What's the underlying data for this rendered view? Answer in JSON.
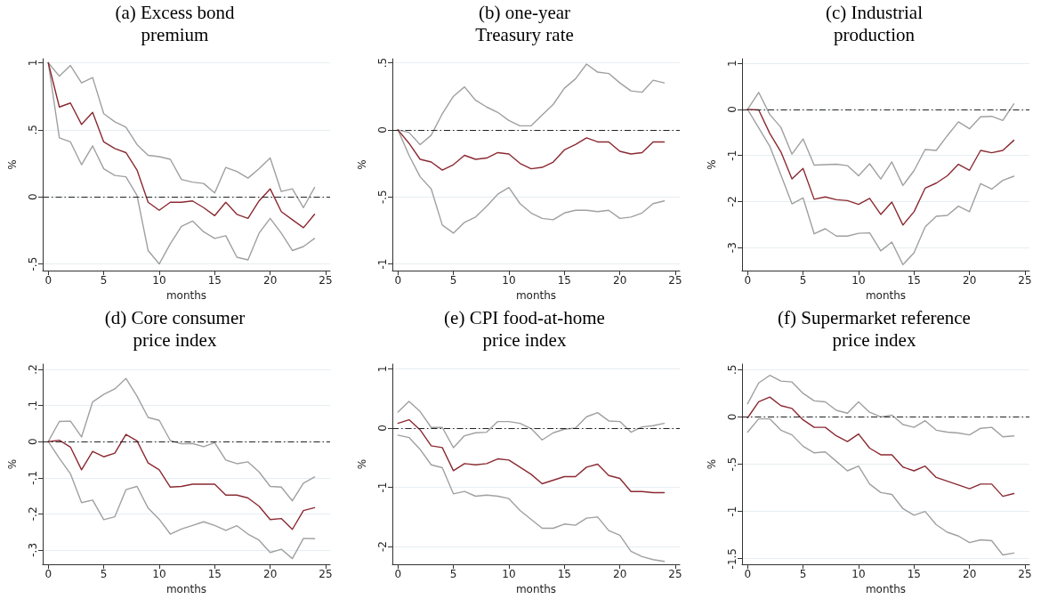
{
  "chart_data": [
    {
      "type": "line",
      "title": "(a) Excess bond\npremium",
      "xlabel": "months",
      "ylabel": "%",
      "x": [
        0,
        1,
        2,
        3,
        4,
        5,
        6,
        7,
        8,
        9,
        10,
        11,
        12,
        13,
        14,
        15,
        16,
        17,
        18,
        19,
        20,
        21,
        22,
        23,
        24
      ],
      "xlim": [
        -0.5,
        25.4
      ],
      "xticks": [
        0,
        5,
        10,
        15,
        20,
        25
      ],
      "ylim": [
        -0.55,
        1.03
      ],
      "yticks": [
        {
          "value": -0.5,
          "label": "-.5"
        },
        0,
        {
          "value": 0.5,
          "label": ".5"
        },
        1
      ],
      "grid": "y",
      "marker": "none",
      "line_style": "solid",
      "ref_lines": [
        {
          "axis": "y",
          "value": 0,
          "color": "#222222",
          "line_style": "dashed"
        }
      ],
      "series": [
        {
          "color": "#a0a0a0",
          "values": [
            1.0,
            0.9,
            0.98,
            0.85,
            0.89,
            0.62,
            0.56,
            0.52,
            0.39,
            0.31,
            0.3,
            0.28,
            0.13,
            0.11,
            0.1,
            0.03,
            0.22,
            0.19,
            0.14,
            0.21,
            0.29,
            0.04,
            0.06,
            -0.08,
            0.07
          ]
        },
        {
          "color": "#a0a0a0",
          "values": [
            1.0,
            0.44,
            0.41,
            0.24,
            0.38,
            0.21,
            0.16,
            0.15,
            0.01,
            -0.4,
            -0.5,
            -0.35,
            -0.22,
            -0.18,
            -0.26,
            -0.31,
            -0.29,
            -0.45,
            -0.47,
            -0.27,
            -0.16,
            -0.27,
            -0.4,
            -0.37,
            -0.31
          ]
        },
        {
          "color": "#8b2a32",
          "values": [
            1.0,
            0.67,
            0.7,
            0.54,
            0.63,
            0.41,
            0.36,
            0.33,
            0.2,
            -0.04,
            -0.1,
            -0.04,
            -0.04,
            -0.03,
            -0.08,
            -0.14,
            -0.04,
            -0.13,
            -0.16,
            -0.03,
            0.06,
            -0.11,
            -0.17,
            -0.23,
            -0.13
          ]
        }
      ]
    },
    {
      "type": "line",
      "title": "(b) one-year\nTreasury rate",
      "xlabel": "months",
      "ylabel": "%",
      "x": [
        0,
        1,
        2,
        3,
        4,
        5,
        6,
        7,
        8,
        9,
        10,
        11,
        12,
        13,
        14,
        15,
        16,
        17,
        18,
        19,
        20,
        21,
        22,
        23,
        24
      ],
      "xlim": [
        -0.5,
        25.4
      ],
      "xticks": [
        0,
        5,
        10,
        15,
        20,
        25
      ],
      "ylim": [
        -1.05,
        0.53
      ],
      "yticks": [
        -1,
        {
          "value": -0.5,
          "label": "-.5"
        },
        0,
        {
          "value": 0.5,
          "label": ".5"
        }
      ],
      "grid": "y",
      "marker": "none",
      "line_style": "solid",
      "ref_lines": [
        {
          "axis": "y",
          "value": 0,
          "color": "#222222",
          "line_style": "dashed"
        }
      ],
      "series": [
        {
          "color": "#a0a0a0",
          "values": [
            0,
            -0.02,
            -0.11,
            -0.04,
            0.12,
            0.25,
            0.32,
            0.22,
            0.17,
            0.13,
            0.07,
            0.03,
            0.03,
            0.11,
            0.19,
            0.31,
            0.38,
            0.49,
            0.43,
            0.42,
            0.35,
            0.29,
            0.28,
            0.37,
            0.35
          ]
        },
        {
          "color": "#a0a0a0",
          "values": [
            0,
            -0.19,
            -0.35,
            -0.44,
            -0.71,
            -0.77,
            -0.69,
            -0.65,
            -0.57,
            -0.48,
            -0.43,
            -0.55,
            -0.62,
            -0.66,
            -0.67,
            -0.62,
            -0.6,
            -0.6,
            -0.61,
            -0.6,
            -0.66,
            -0.65,
            -0.62,
            -0.55,
            -0.53
          ]
        },
        {
          "color": "#8b2a32",
          "values": [
            0,
            -0.1,
            -0.22,
            -0.24,
            -0.3,
            -0.26,
            -0.19,
            -0.22,
            -0.21,
            -0.17,
            -0.18,
            -0.25,
            -0.29,
            -0.28,
            -0.24,
            -0.15,
            -0.11,
            -0.06,
            -0.09,
            -0.09,
            -0.16,
            -0.18,
            -0.17,
            -0.09,
            -0.09
          ]
        }
      ]
    },
    {
      "type": "line",
      "title": "(c) Industrial\nproduction",
      "xlabel": "months",
      "ylabel": "%",
      "x": [
        0,
        1,
        2,
        3,
        4,
        5,
        6,
        7,
        8,
        9,
        10,
        11,
        12,
        13,
        14,
        15,
        16,
        17,
        18,
        19,
        20,
        21,
        22,
        23,
        24
      ],
      "xlim": [
        -0.5,
        25.4
      ],
      "xticks": [
        0,
        5,
        10,
        15,
        20,
        25
      ],
      "ylim": [
        -3.5,
        1.1
      ],
      "yticks": [
        -3,
        -2,
        -1,
        0,
        1
      ],
      "grid": "y",
      "marker": "none",
      "line_style": "solid",
      "ref_lines": [
        {
          "axis": "y",
          "value": 0,
          "color": "#222222",
          "line_style": "dashed"
        }
      ],
      "series": [
        {
          "color": "#a0a0a0",
          "values": [
            0,
            0.37,
            -0.11,
            -0.39,
            -0.97,
            -0.64,
            -1.21,
            -1.2,
            -1.19,
            -1.22,
            -1.44,
            -1.18,
            -1.51,
            -1.14,
            -1.65,
            -1.33,
            -0.87,
            -0.89,
            -0.57,
            -0.27,
            -0.42,
            -0.16,
            -0.15,
            -0.24,
            0.12
          ]
        },
        {
          "color": "#a0a0a0",
          "values": [
            0,
            -0.4,
            -0.8,
            -1.42,
            -2.05,
            -1.92,
            -2.7,
            -2.59,
            -2.75,
            -2.75,
            -2.69,
            -2.68,
            -3.07,
            -2.88,
            -3.37,
            -3.11,
            -2.55,
            -2.32,
            -2.3,
            -2.1,
            -2.22,
            -1.61,
            -1.73,
            -1.54,
            -1.45
          ]
        },
        {
          "color": "#8b2a32",
          "values": [
            0,
            -0.01,
            -0.52,
            -0.92,
            -1.51,
            -1.28,
            -1.95,
            -1.9,
            -1.96,
            -1.98,
            -2.06,
            -1.93,
            -2.28,
            -2.01,
            -2.51,
            -2.22,
            -1.71,
            -1.6,
            -1.44,
            -1.19,
            -1.32,
            -0.89,
            -0.94,
            -0.89,
            -0.67
          ]
        }
      ]
    },
    {
      "type": "line",
      "title": "(d) Core consumer\nprice index",
      "xlabel": "months",
      "ylabel": "%",
      "x": [
        0,
        1,
        2,
        3,
        4,
        5,
        6,
        7,
        8,
        9,
        10,
        11,
        12,
        13,
        14,
        15,
        16,
        17,
        18,
        19,
        20,
        21,
        22,
        23,
        24
      ],
      "xlim": [
        -0.5,
        25.4
      ],
      "xticks": [
        0,
        5,
        10,
        15,
        20,
        25
      ],
      "ylim": [
        -0.34,
        0.215
      ],
      "yticks": [
        {
          "value": -0.3,
          "label": "-.3"
        },
        {
          "value": -0.2,
          "label": "-.2"
        },
        {
          "value": -0.1,
          "label": "-.1"
        },
        0,
        {
          "value": 0.1,
          "label": ".1"
        },
        {
          "value": 0.2,
          "label": ".2"
        }
      ],
      "grid": "y",
      "marker": "none",
      "line_style": "solid",
      "ref_lines": [
        {
          "axis": "y",
          "value": 0,
          "color": "#222222",
          "line_style": "dashed"
        }
      ],
      "series": [
        {
          "color": "#a0a0a0",
          "values": [
            0,
            0.056,
            0.057,
            0.013,
            0.11,
            0.131,
            0.146,
            0.175,
            0.126,
            0.067,
            0.059,
            0.003,
            -0.006,
            -0.005,
            -0.014,
            -0.003,
            -0.051,
            -0.061,
            -0.056,
            -0.084,
            -0.124,
            -0.126,
            -0.164,
            -0.115,
            -0.098
          ]
        },
        {
          "color": "#a0a0a0",
          "values": [
            0,
            -0.046,
            -0.089,
            -0.169,
            -0.162,
            -0.216,
            -0.208,
            -0.133,
            -0.124,
            -0.184,
            -0.215,
            -0.256,
            -0.242,
            -0.232,
            -0.222,
            -0.232,
            -0.246,
            -0.233,
            -0.256,
            -0.273,
            -0.307,
            -0.298,
            -0.324,
            -0.268,
            -0.269
          ]
        },
        {
          "color": "#8b2a32",
          "values": [
            0,
            0.004,
            -0.015,
            -0.078,
            -0.027,
            -0.042,
            -0.032,
            0.02,
            0.002,
            -0.059,
            -0.078,
            -0.126,
            -0.124,
            -0.118,
            -0.118,
            -0.118,
            -0.148,
            -0.148,
            -0.156,
            -0.179,
            -0.216,
            -0.213,
            -0.243,
            -0.191,
            -0.183
          ]
        }
      ]
    },
    {
      "type": "line",
      "title": "(e) CPI food-at-home\nprice index",
      "xlabel": "months",
      "ylabel": "%",
      "x": [
        0,
        1,
        2,
        3,
        4,
        5,
        6,
        7,
        8,
        9,
        10,
        11,
        12,
        13,
        14,
        15,
        16,
        17,
        18,
        19,
        20,
        21,
        22,
        23,
        24
      ],
      "xlim": [
        -0.5,
        25.4
      ],
      "xticks": [
        0,
        5,
        10,
        15,
        20,
        25
      ],
      "ylim": [
        -2.3,
        1.08
      ],
      "yticks": [
        -2,
        -1,
        0,
        1
      ],
      "grid": "y",
      "marker": "none",
      "line_style": "solid",
      "ref_lines": [
        {
          "axis": "y",
          "value": 0,
          "color": "#222222",
          "line_style": "dashed"
        }
      ],
      "series": [
        {
          "color": "#a0a0a0",
          "values": [
            0.27,
            0.45,
            0.28,
            0.01,
            0.01,
            -0.33,
            -0.13,
            -0.08,
            -0.07,
            0.11,
            0.11,
            0.08,
            -0.01,
            -0.2,
            -0.08,
            -0.02,
            0.0,
            0.19,
            0.26,
            0.12,
            0.11,
            -0.07,
            0.02,
            0.04,
            0.08
          ]
        },
        {
          "color": "#a0a0a0",
          "values": [
            -0.12,
            -0.16,
            -0.36,
            -0.62,
            -0.67,
            -1.11,
            -1.07,
            -1.15,
            -1.13,
            -1.15,
            -1.19,
            -1.39,
            -1.54,
            -1.69,
            -1.69,
            -1.62,
            -1.64,
            -1.52,
            -1.5,
            -1.73,
            -1.81,
            -2.08,
            -2.17,
            -2.22,
            -2.25
          ]
        },
        {
          "color": "#8b2a32",
          "values": [
            0.08,
            0.14,
            -0.03,
            -0.3,
            -0.33,
            -0.72,
            -0.6,
            -0.62,
            -0.6,
            -0.52,
            -0.54,
            -0.66,
            -0.78,
            -0.94,
            -0.88,
            -0.82,
            -0.82,
            -0.66,
            -0.61,
            -0.8,
            -0.85,
            -1.07,
            -1.07,
            -1.09,
            -1.09
          ]
        }
      ]
    },
    {
      "type": "line",
      "title": "(f) Supermarket reference\nprice index",
      "xlabel": "months",
      "ylabel": "%",
      "x": [
        0,
        1,
        2,
        3,
        4,
        5,
        6,
        7,
        8,
        9,
        10,
        11,
        12,
        13,
        14,
        15,
        16,
        17,
        18,
        19,
        20,
        21,
        22,
        23,
        24
      ],
      "xlim": [
        -0.5,
        25.4
      ],
      "xticks": [
        0,
        5,
        10,
        15,
        20,
        25
      ],
      "ylim": [
        -1.56,
        0.56
      ],
      "yticks": [
        {
          "value": -1.5,
          "label": "-1.5"
        },
        -1,
        {
          "value": -0.5,
          "label": "-.5"
        },
        0,
        {
          "value": 0.5,
          "label": ".5"
        }
      ],
      "grid": "y",
      "marker": "none",
      "line_style": "solid",
      "ref_lines": [
        {
          "axis": "y",
          "value": 0,
          "color": "#222222",
          "line_style": "dashed"
        }
      ],
      "series": [
        {
          "color": "#a0a0a0",
          "values": [
            0.14,
            0.36,
            0.44,
            0.38,
            0.37,
            0.25,
            0.17,
            0.16,
            0.07,
            0.04,
            0.16,
            0.05,
            0.0,
            0.02,
            -0.08,
            -0.11,
            -0.04,
            -0.14,
            -0.16,
            -0.17,
            -0.19,
            -0.12,
            -0.11,
            -0.21,
            -0.2
          ]
        },
        {
          "color": "#a0a0a0",
          "values": [
            -0.16,
            -0.02,
            -0.02,
            -0.14,
            -0.19,
            -0.31,
            -0.38,
            -0.37,
            -0.47,
            -0.57,
            -0.52,
            -0.71,
            -0.8,
            -0.82,
            -0.97,
            -1.04,
            -1.0,
            -1.14,
            -1.22,
            -1.26,
            -1.33,
            -1.3,
            -1.31,
            -1.46,
            -1.44
          ]
        },
        {
          "color": "#8b2a32",
          "values": [
            -0.01,
            0.16,
            0.21,
            0.12,
            0.09,
            -0.03,
            -0.11,
            -0.11,
            -0.2,
            -0.26,
            -0.18,
            -0.33,
            -0.4,
            -0.4,
            -0.53,
            -0.57,
            -0.52,
            -0.64,
            -0.68,
            -0.72,
            -0.76,
            -0.71,
            -0.71,
            -0.84,
            -0.81
          ]
        }
      ]
    }
  ]
}
